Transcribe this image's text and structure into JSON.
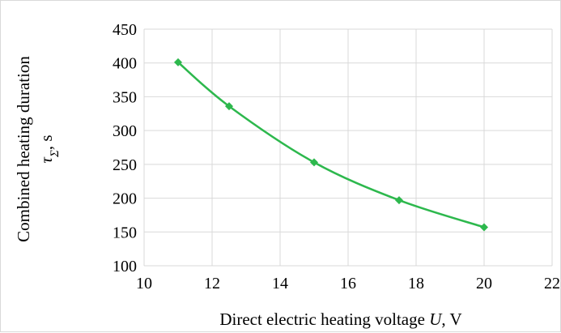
{
  "chart_data": {
    "type": "line",
    "title": "",
    "xlabel": {
      "text": "Direct electric heating voltage",
      "symbol": "U",
      "unit": ", V"
    },
    "ylabel": {
      "line1": "Combined heating duration",
      "symbol": "τ",
      "subscript": "Σ",
      "unit": ", s"
    },
    "xlim": [
      10,
      22
    ],
    "ylim": [
      100,
      450
    ],
    "xticks": [
      10,
      12,
      14,
      16,
      18,
      20,
      22
    ],
    "yticks": [
      100,
      150,
      200,
      250,
      300,
      350,
      400,
      450
    ],
    "grid": true,
    "legend": "none",
    "smooth": true,
    "marker": "diamond",
    "series": [
      {
        "color": "#2db84d",
        "x": [
          11,
          12.5,
          15,
          17.5,
          20
        ],
        "y": [
          401,
          336,
          253,
          197,
          157
        ]
      }
    ]
  }
}
